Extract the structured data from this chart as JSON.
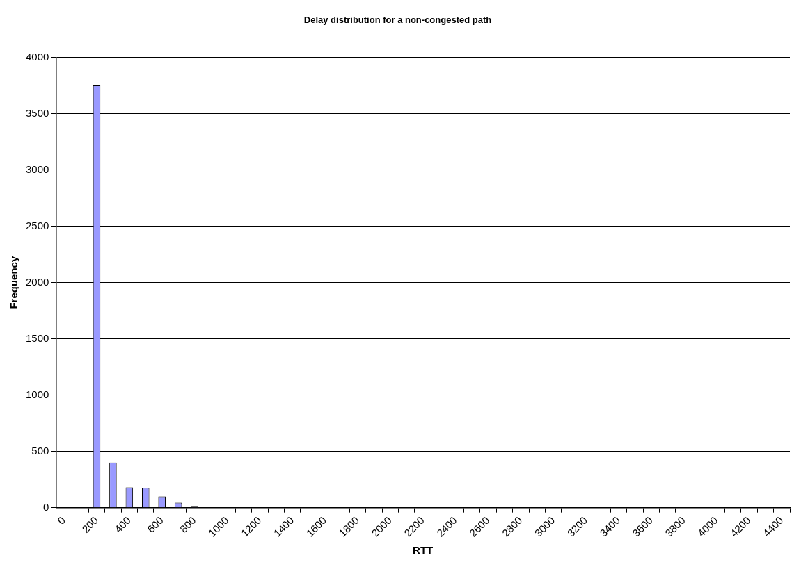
{
  "chart_data": {
    "type": "bar",
    "title": "Delay distribution for a non-congested path",
    "xlabel": "RTT",
    "ylabel": "Frequency",
    "categories": [
      "0",
      null,
      "200",
      null,
      "400",
      null,
      "600",
      null,
      "800",
      null,
      "1000",
      null,
      "1200",
      null,
      "1400",
      null,
      "1600",
      null,
      "1800",
      null,
      "2000",
      null,
      "2200",
      null,
      "2400",
      null,
      "2600",
      null,
      "2800",
      null,
      "3000",
      null,
      "3200",
      null,
      "3400",
      null,
      "3600",
      null,
      "3800",
      null,
      "4000",
      null,
      "4200",
      null,
      "4400"
    ],
    "values": [
      0,
      0,
      3750,
      400,
      180,
      175,
      100,
      45,
      15,
      0,
      0,
      0,
      0,
      0,
      0,
      0,
      0,
      0,
      0,
      0,
      0,
      0,
      0,
      0,
      0,
      0,
      0,
      0,
      0,
      0,
      0,
      0,
      0,
      0,
      0,
      0,
      0,
      0,
      0,
      0,
      0,
      0,
      0,
      0,
      0
    ],
    "color": "#9999ff",
    "ylim": [
      0,
      4000
    ],
    "yticks": [
      0,
      500,
      1000,
      1500,
      2000,
      2500,
      3000,
      3500,
      4000
    ],
    "grid": "y",
    "legend": false
  }
}
